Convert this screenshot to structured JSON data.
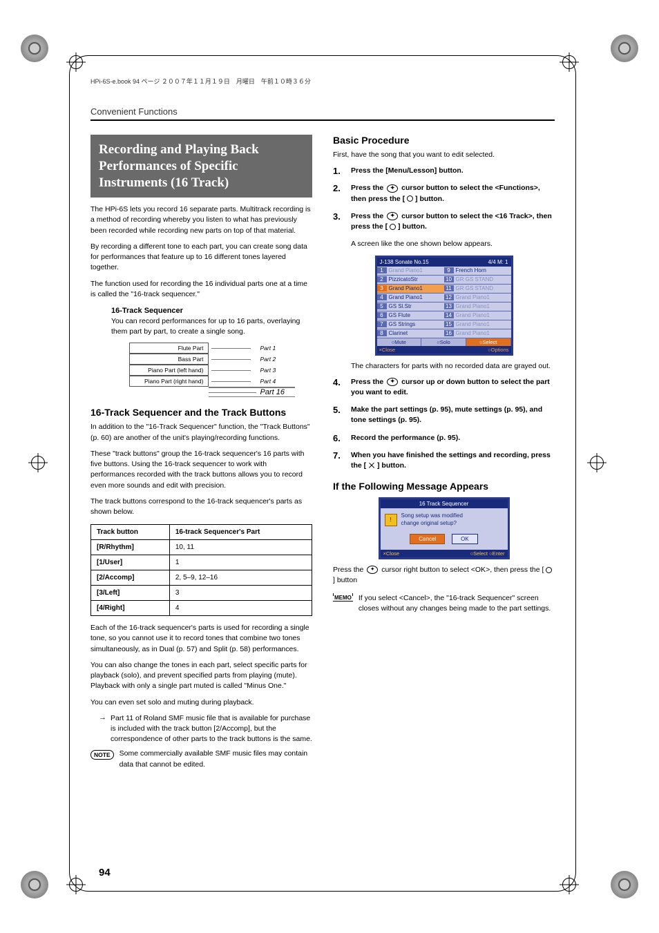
{
  "doc_header": "HPi-6S-e.book  94 ページ  ２００７年１１月１９日　月曜日　午前１０時３６分",
  "running_head": "Convenient Functions",
  "page_number": "94",
  "title_block": "Recording and Playing Back Performances of Specific Instruments (16 Track)",
  "left": {
    "p1": "The HPi-6S lets you record 16 separate parts. Multitrack recording is a method of recording whereby you listen to what has previously been recorded while recording new parts on top of that material.",
    "p2": "By recording a different tone to each part, you can create song data for performances that feature up to 16 different tones layered together.",
    "p3": "The function used for recording the 16 individual parts one at a time is called the \"16-track sequencer.\"",
    "seq_head": "16-Track Sequencer",
    "seq_desc": "You can record performances for up to 16 parts, overlaying them part by part, to create a single song.",
    "diagram": {
      "rows": [
        {
          "label": "Flute Part",
          "part": "Part 1"
        },
        {
          "label": "Bass Part",
          "part": "Part 2"
        },
        {
          "label": "Piano Part (left hand)",
          "part": "Part 3"
        },
        {
          "label": "Piano Part (right hand)",
          "part": "Part 4"
        }
      ],
      "last_part": "Part 16"
    },
    "h2a": "16-Track Sequencer and the Track Buttons",
    "p4": "In addition to the \"16-Track Sequencer\" function, the \"Track Buttons\" (p. 60) are another of the unit's playing/recording functions.",
    "p5": "These \"track buttons\" group the 16-track sequencer's 16 parts with five buttons. Using the 16-track sequencer to work with performances recorded with the track buttons allows you to record even more sounds and edit with precision.",
    "p6": "The track buttons correspond to the 16-track sequencer's parts as shown below.",
    "table": {
      "headers": [
        "Track button",
        "16-track Sequencer's Part"
      ],
      "rows": [
        [
          "[R/Rhythm]",
          "10, 11"
        ],
        [
          "[1/User]",
          "1"
        ],
        [
          "[2/Accomp]",
          "2, 5–9, 12–16"
        ],
        [
          "[3/Left]",
          "3"
        ],
        [
          "[4/Right]",
          "4"
        ]
      ]
    },
    "p7": "Each of the 16-track sequencer's parts is used for recording a single tone, so you cannot use it to record tones that combine two tones simultaneously, as in Dual (p. 57) and Split (p. 58) performances.",
    "p8": "You can also change the tones in each part, select specific parts for playback (solo), and prevent specified parts from playing (mute). Playback with only a single part muted is called \"Minus One.\"",
    "p9": "You can even set solo and muting during playback.",
    "arrow_note": "Part 11 of Roland SMF music file that is available for purchase is included with the track button [2/Accomp], but the correspondence of other parts to the track buttons is the same.",
    "note_label": "NOTE",
    "note_text": "Some commercially available SMF music files may contain data that cannot be edited."
  },
  "right": {
    "h2b": "Basic Procedure",
    "intro": "First, have the song that you want to edit selected.",
    "steps": [
      {
        "n": "1.",
        "html": "<b>Press the [Menu/Lesson] button.</b>"
      },
      {
        "n": "2.",
        "html": "<b>Press the <span class='cursor-icon' data-name='cursor-icon' data-interactable='false'></span> cursor button to select the &lt;Functions&gt;, then press the [ <span class='circle-icon' data-name='circle-icon' data-interactable='false'></span> ] button.</b>"
      },
      {
        "n": "3.",
        "html": "<b>Press the <span class='cursor-icon' data-name='cursor-icon' data-interactable='false'></span> cursor button to select the &lt;16 Track&gt;, then press the [ <span class='circle-icon' data-name='circle-icon' data-interactable='false'></span> ] button.</b>"
      }
    ],
    "after3": "A screen like the one shown below appears.",
    "screen": {
      "title_left": "J-138 Sonate No.15",
      "title_right": "4/4  M:    1",
      "left_col": [
        {
          "n": "1",
          "t": "Grand Piano1",
          "dim": true
        },
        {
          "n": "2",
          "t": "PizzicatoStr"
        },
        {
          "n": "3",
          "t": "Grand Piano1",
          "hl": true
        },
        {
          "n": "4",
          "t": "Grand Piano1"
        },
        {
          "n": "5",
          "t": "GS Sl.Str"
        },
        {
          "n": "6",
          "t": "GS Flute"
        },
        {
          "n": "7",
          "t": "GS Strings"
        },
        {
          "n": "8",
          "t": "Clarinet"
        }
      ],
      "right_col": [
        {
          "n": "9",
          "t": "French Horn"
        },
        {
          "n": "10",
          "t": "GR  GS  STAND",
          "dim": true
        },
        {
          "n": "11",
          "t": "GR  GS  STAND",
          "dim": true
        },
        {
          "n": "12",
          "t": "Grand Piano1",
          "dim": true
        },
        {
          "n": "13",
          "t": "Grand Piano1",
          "dim": true
        },
        {
          "n": "14",
          "t": "Grand Piano1",
          "dim": true
        },
        {
          "n": "15",
          "t": "Grand Piano1",
          "dim": true
        },
        {
          "n": "16",
          "t": "Grand Piano1",
          "dim": true
        }
      ],
      "buttons": [
        "○Mute",
        "○Solo",
        "○Select"
      ],
      "foot_left": "×Close",
      "foot_right": "○Options"
    },
    "grayed": "The characters for parts with no recorded data are grayed out.",
    "steps2": [
      {
        "n": "4.",
        "html": "<b>Press the <span class='cursor-icon' data-name='cursor-icon' data-interactable='false'></span> cursor up or down button to select the part you want to edit.</b>"
      },
      {
        "n": "5.",
        "html": "<b>Make the part settings (p. 95), mute settings (p. 95), and tone settings (p. 95).</b>"
      },
      {
        "n": "6.",
        "html": "<b>Record the performance (p. 95).</b>"
      },
      {
        "n": "7.",
        "html": "<b>When you have finished the settings and recording, press the [ <span class='x-icon' data-name='x-icon' data-interactable='false'></span> ] button.</b>"
      }
    ],
    "h2c": "If the Following Message Appears",
    "dialog": {
      "title": "16 Track Sequencer",
      "line1": "Song setup was modified",
      "line2": "change original setup?",
      "cancel": "Cancel",
      "ok": "OK",
      "foot_left": "×Close",
      "foot_right": "○Select  ○Enter"
    },
    "press_ok": "Press the  cursor right button to select <OK>, then press the [  ] button",
    "memo_label": "MEMO",
    "memo_text": "If you select <Cancel>, the \"16-track Sequencer\" screen closes without any changes being made to the part settings."
  }
}
